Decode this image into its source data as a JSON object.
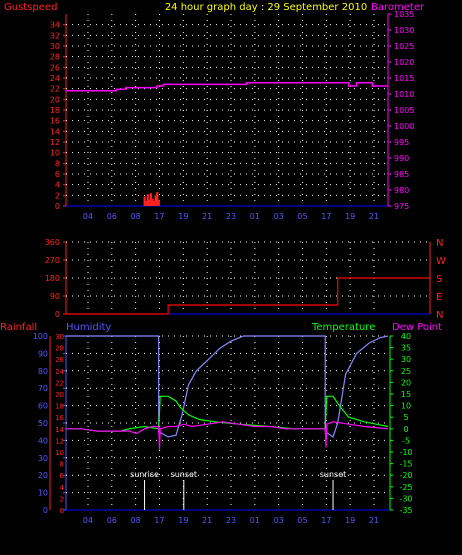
{
  "header": {
    "left_label": "Gustspeed",
    "title": "24 hour graph day : 29 September 2010",
    "right_label": "Barometer"
  },
  "colors": {
    "background": "#000000",
    "grid": "#ffffff",
    "axis_line": "#0000ff",
    "red": "#ff2020",
    "magenta": "#ff00ff",
    "blue_labels": "#5555ff",
    "humidity": "#8888ff",
    "temperature": "#00ff00",
    "dew_point": "#ff00ff",
    "title": "#ffff00",
    "wind": "#ff0000",
    "marker": "#ffffff"
  },
  "chart_data": [
    {
      "type": "line",
      "id": "top",
      "xlim": [
        3,
        23.5
      ],
      "x_ticks": [
        "04",
        "06",
        "08",
        "17",
        "19",
        "21",
        "23",
        "01",
        "03",
        "05",
        "17",
        "19",
        "21"
      ],
      "y_left": {
        "label": "Gustspeed",
        "ylim": [
          0,
          36
        ],
        "ticks": [
          0,
          2,
          4,
          6,
          8,
          10,
          12,
          14,
          16,
          18,
          20,
          22,
          24,
          26,
          28,
          30,
          32,
          34
        ]
      },
      "y_right": {
        "label": "Barometer",
        "ylim": [
          975,
          1035
        ],
        "ticks": [
          975,
          980,
          985,
          990,
          995,
          1000,
          1005,
          1010,
          1015,
          1020,
          1025,
          1030,
          1035
        ]
      },
      "series": [
        {
          "axis": "right",
          "color": "#ff00ff",
          "x": [
            3.0,
            6.2,
            6.2,
            6.8,
            6.8,
            8.8,
            8.8,
            9.2,
            9.2,
            14.5,
            14.5,
            21.0,
            21.0,
            21.5,
            21.5,
            22.5,
            22.5,
            23.5
          ],
          "y": [
            1011,
            1011,
            1011.5,
            1011.5,
            1012,
            1012,
            1012.5,
            1012.5,
            1013,
            1013,
            1013.5,
            1013.5,
            1012.5,
            1012.5,
            1013.5,
            1013.5,
            1012.5,
            1012.5
          ]
        },
        {
          "axis": "left",
          "color": "#ff2020",
          "kind": "bars",
          "x": [
            8.0,
            8.1,
            8.2,
            8.3,
            8.4,
            8.5,
            8.6,
            8.7,
            8.8,
            8.9
          ],
          "y": [
            1.8,
            1.0,
            2.2,
            1.2,
            2.4,
            1.4,
            1.0,
            2.0,
            2.6,
            1.2
          ]
        }
      ]
    },
    {
      "type": "line",
      "id": "wind",
      "xlim": [
        3,
        23.5
      ],
      "y_left": {
        "ylim": [
          0,
          360
        ],
        "ticks": [
          0,
          90,
          180,
          270,
          360
        ]
      },
      "y_right": {
        "labels": [
          "N",
          "W",
          "S",
          "E",
          "N"
        ]
      },
      "series": [
        {
          "color": "#ff0000",
          "x": [
            3.0,
            9.5,
            9.5,
            20.3,
            20.3,
            23.5
          ],
          "y": [
            0,
            0,
            45,
            45,
            180,
            180
          ]
        }
      ]
    },
    {
      "type": "line",
      "id": "climate",
      "xlim": [
        3,
        23.5
      ],
      "x_ticks": [
        "04",
        "06",
        "08",
        "17",
        "19",
        "21",
        "23",
        "01",
        "03",
        "05",
        "17",
        "19",
        "21"
      ],
      "y_left_outer": {
        "label": "Rainfall",
        "ticks": [
          0,
          2,
          4,
          6,
          8,
          10,
          12,
          14,
          16,
          18,
          20,
          22,
          24,
          26,
          28,
          30
        ]
      },
      "y_left_inner": {
        "label": "Humidity",
        "ylim": [
          0,
          100
        ],
        "ticks": [
          0,
          10,
          20,
          30,
          40,
          50,
          60,
          70,
          80,
          90,
          100
        ]
      },
      "y_right_inner": {
        "label": "Temperature",
        "ylim": [
          -35,
          40
        ],
        "ticks": [
          40,
          35,
          30,
          25,
          20,
          15,
          10,
          5,
          0,
          -5,
          -10,
          -15,
          -20,
          -25,
          -30,
          -35
        ]
      },
      "y_right_outer": {
        "label": "Dew Point"
      },
      "annotations": [
        {
          "label": "sunrise",
          "x": 8.0
        },
        {
          "label": "sunset",
          "x": 10.5
        },
        {
          "label": "sunset",
          "x": 20.0
        }
      ],
      "series": [
        {
          "name": "Humidity",
          "axis": "humidity",
          "color": "#8888ff",
          "x": [
            3.0,
            8.9,
            8.9,
            9.5,
            10.0,
            10.4,
            10.8,
            11.3,
            12.0,
            12.8,
            13.5,
            14.3,
            15.0,
            19.0,
            19.5,
            19.5,
            20.0,
            20.3,
            20.8,
            21.5,
            22.3,
            23.0,
            23.5
          ],
          "y": [
            100,
            100,
            45,
            42,
            43,
            55,
            72,
            80,
            86,
            93,
            97,
            100,
            100,
            100,
            100,
            45,
            42,
            50,
            78,
            90,
            96,
            99,
            100
          ]
        },
        {
          "name": "Temperature",
          "axis": "temperature",
          "color": "#00ff00",
          "x": [
            3.0,
            4.0,
            5.0,
            6.5,
            7.0,
            8.0,
            8.9,
            9.0,
            9.5,
            10.0,
            10.3,
            10.8,
            11.5,
            12.5,
            14.0,
            16.0,
            17.5,
            19.0,
            19.5,
            19.6,
            20.0,
            20.4,
            21.0,
            22.0,
            23.5
          ],
          "y": [
            0,
            0,
            -1,
            -1,
            0,
            1,
            0,
            14,
            14,
            12,
            9,
            6,
            4,
            3,
            2,
            1,
            0,
            0,
            0,
            14,
            14,
            10,
            5,
            3,
            1
          ]
        },
        {
          "name": "Dew Point",
          "axis": "temperature",
          "color": "#ff00ff",
          "x": [
            3.0,
            4.0,
            5.0,
            6.0,
            7.0,
            7.5,
            8.0,
            8.5,
            8.9,
            8.95,
            9.0,
            9.5,
            10.0,
            10.5,
            11.0,
            12.0,
            13.0,
            14.0,
            15.0,
            16.0,
            17.0,
            18.0,
            19.0,
            19.5,
            19.55,
            19.6,
            20.0,
            21.0,
            22.0,
            23.5
          ],
          "y": [
            0,
            0,
            -1,
            -1,
            -1,
            -2,
            0,
            1,
            1,
            -9,
            0,
            1,
            1,
            2,
            1,
            2,
            3,
            2,
            1,
            1,
            0,
            0,
            0,
            0,
            -8,
            2,
            3,
            2,
            1,
            0
          ]
        }
      ]
    }
  ]
}
